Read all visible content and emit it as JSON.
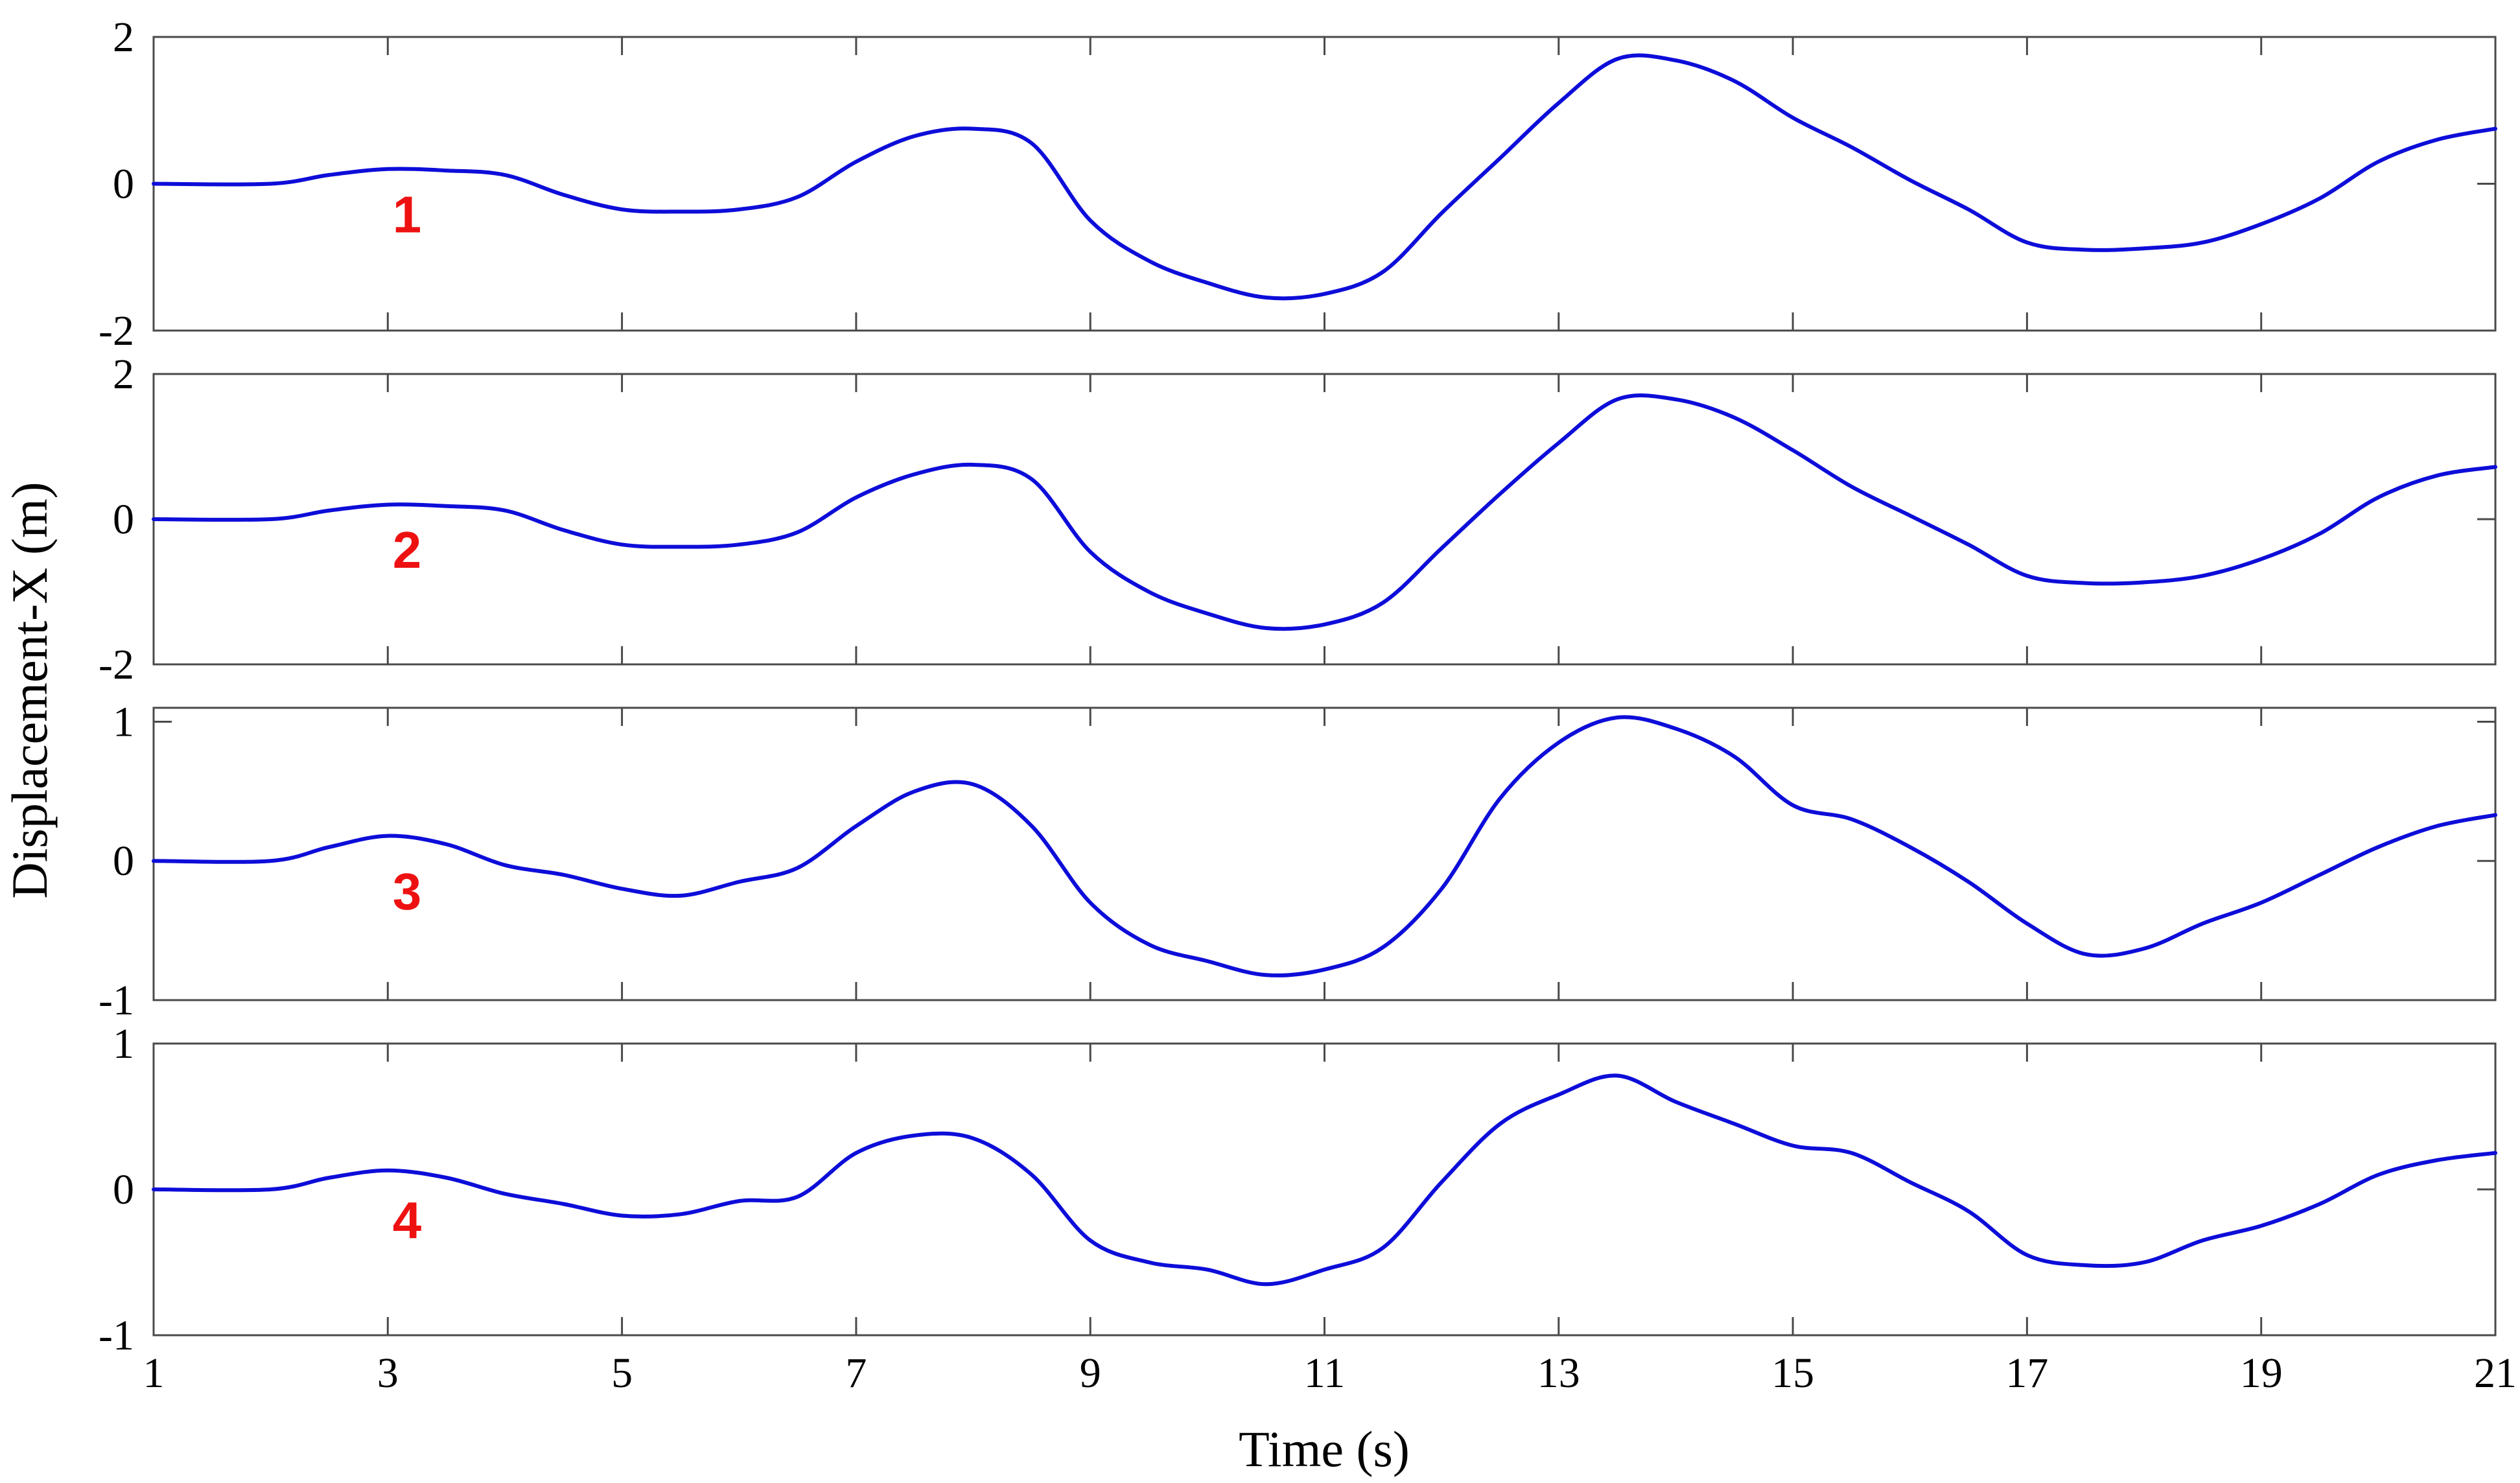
{
  "colors": {
    "series": "#0d0dd9",
    "panel_label": "#ee1111",
    "frame": "#4a4a4a"
  },
  "chart_data": {
    "type": "line",
    "xlabel": "Time (s)",
    "ylabel": "Displacement-X (m)",
    "grid": false,
    "xlim": [
      1,
      21
    ],
    "xticks": [
      1,
      3,
      5,
      7,
      9,
      11,
      13,
      15,
      17,
      19,
      21
    ],
    "panels": [
      {
        "label": "1",
        "ylim": [
          -2,
          2
        ],
        "yticks": [
          -2,
          0,
          2
        ],
        "series": [
          {
            "x": [
              1,
              2,
              2.5,
              3,
              3.5,
              4,
              4.5,
              5,
              5.5,
              6,
              6.5,
              7,
              7.5,
              8,
              8.5,
              9,
              9.5,
              10,
              10.5,
              11,
              11.5,
              12,
              12.5,
              13,
              13.5,
              14,
              14.5,
              15,
              15.5,
              16,
              16.5,
              17,
              17.5,
              18,
              18.5,
              19,
              19.5,
              20,
              20.5,
              21
            ],
            "y": [
              0,
              0,
              0.12,
              0.2,
              0.18,
              0.12,
              -0.15,
              -0.35,
              -0.38,
              -0.35,
              -0.18,
              0.3,
              0.65,
              0.75,
              0.55,
              -0.5,
              -1.05,
              -1.35,
              -1.55,
              -1.5,
              -1.2,
              -0.4,
              0.35,
              1.1,
              1.7,
              1.68,
              1.4,
              0.9,
              0.5,
              0.05,
              -0.35,
              -0.8,
              -0.9,
              -0.88,
              -0.8,
              -0.55,
              -0.2,
              0.3,
              0.6,
              0.75
            ]
          }
        ]
      },
      {
        "label": "2",
        "ylim": [
          -2,
          2
        ],
        "yticks": [
          -2,
          0,
          2
        ],
        "series": [
          {
            "x": [
              1,
              2,
              2.5,
              3,
              3.5,
              4,
              4.5,
              5,
              5.5,
              6,
              6.5,
              7,
              7.5,
              8,
              8.5,
              9,
              9.5,
              10,
              10.5,
              11,
              11.5,
              12,
              12.5,
              13,
              13.5,
              14,
              14.5,
              15,
              15.5,
              16,
              16.5,
              17,
              17.5,
              18,
              18.5,
              19,
              19.5,
              20,
              20.5,
              21
            ],
            "y": [
              0,
              0,
              0.12,
              0.2,
              0.18,
              0.12,
              -0.15,
              -0.35,
              -0.38,
              -0.35,
              -0.18,
              0.3,
              0.62,
              0.75,
              0.55,
              -0.45,
              -1.0,
              -1.3,
              -1.5,
              -1.45,
              -1.15,
              -0.4,
              0.35,
              1.05,
              1.65,
              1.65,
              1.4,
              0.95,
              0.45,
              0.05,
              -0.35,
              -0.78,
              -0.88,
              -0.87,
              -0.78,
              -0.55,
              -0.2,
              0.3,
              0.6,
              0.72
            ]
          }
        ]
      },
      {
        "label": "3",
        "ylim": [
          -1,
          1.1
        ],
        "yticks": [
          -1,
          0,
          1
        ],
        "series": [
          {
            "x": [
              1,
              2,
              2.5,
              3,
              3.5,
              4,
              4.5,
              5,
              5.5,
              6,
              6.5,
              7,
              7.5,
              8,
              8.5,
              9,
              9.5,
              10,
              10.5,
              11,
              11.5,
              12,
              12.5,
              13,
              13.5,
              14,
              14.5,
              15,
              15.5,
              16,
              16.5,
              17,
              17.5,
              18,
              18.5,
              19,
              19.5,
              20,
              20.5,
              21
            ],
            "y": [
              0,
              0,
              0.1,
              0.18,
              0.12,
              -0.03,
              -0.1,
              -0.2,
              -0.25,
              -0.15,
              -0.05,
              0.25,
              0.5,
              0.55,
              0.25,
              -0.3,
              -0.6,
              -0.72,
              -0.82,
              -0.78,
              -0.62,
              -0.2,
              0.45,
              0.85,
              1.03,
              0.95,
              0.75,
              0.4,
              0.3,
              0.1,
              -0.15,
              -0.45,
              -0.67,
              -0.63,
              -0.45,
              -0.3,
              -0.1,
              0.1,
              0.25,
              0.33
            ]
          }
        ]
      },
      {
        "label": "4",
        "ylim": [
          -1,
          1
        ],
        "yticks": [
          -1,
          0,
          1
        ],
        "series": [
          {
            "x": [
              1,
              2,
              2.5,
              3,
              3.5,
              4,
              4.5,
              5,
              5.5,
              6,
              6.5,
              7,
              7.5,
              8,
              8.5,
              9,
              9.5,
              10,
              10.5,
              11,
              11.5,
              12,
              12.5,
              13,
              13.5,
              14,
              14.5,
              15,
              15.5,
              16,
              16.5,
              17,
              17.5,
              18,
              18.5,
              19,
              19.5,
              20,
              20.5,
              21
            ],
            "y": [
              0,
              0,
              0.08,
              0.13,
              0.08,
              -0.03,
              -0.1,
              -0.18,
              -0.17,
              -0.08,
              -0.05,
              0.25,
              0.37,
              0.35,
              0.1,
              -0.35,
              -0.5,
              -0.55,
              -0.65,
              -0.55,
              -0.4,
              0.05,
              0.45,
              0.65,
              0.78,
              0.6,
              0.45,
              0.3,
              0.25,
              0.05,
              -0.15,
              -0.45,
              -0.52,
              -0.5,
              -0.35,
              -0.25,
              -0.1,
              0.1,
              0.2,
              0.25
            ]
          }
        ]
      }
    ]
  }
}
